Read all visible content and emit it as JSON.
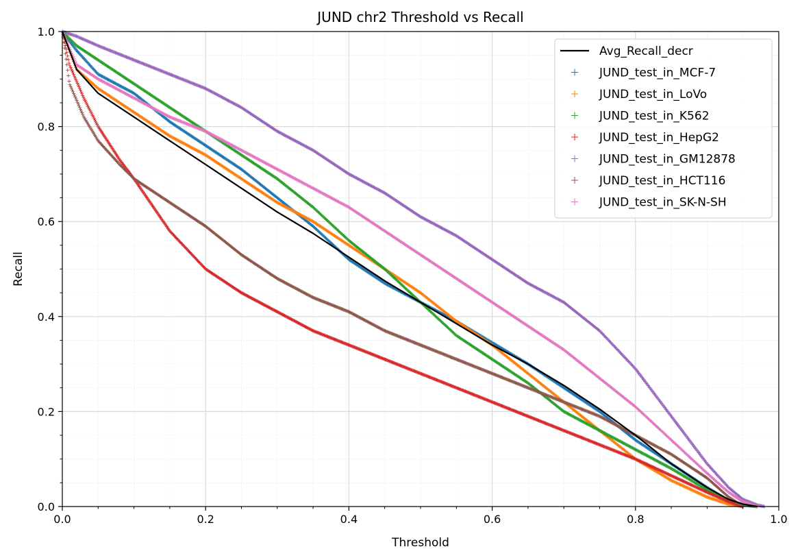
{
  "chart_data": {
    "type": "scatter",
    "title": "JUND chr2 Threshold vs Recall",
    "xlabel": "Threshold",
    "ylabel": "Recall",
    "xlim": [
      0,
      1
    ],
    "ylim": [
      0,
      1
    ],
    "grid": true,
    "legend_position": "top-right",
    "x_ticks": [
      "0.0",
      "0.2",
      "0.4",
      "0.6",
      "0.8",
      "1.0"
    ],
    "y_ticks": [
      "0.0",
      "0.2",
      "0.4",
      "0.6",
      "0.8",
      "1.0"
    ],
    "line_series": {
      "name": "Avg_Recall_decr",
      "color": "#000000",
      "x": [
        0,
        0.02,
        0.05,
        0.1,
        0.15,
        0.2,
        0.25,
        0.3,
        0.35,
        0.4,
        0.45,
        0.5,
        0.55,
        0.6,
        0.65,
        0.7,
        0.75,
        0.8,
        0.85,
        0.9,
        0.93,
        0.95,
        0.97
      ],
      "y": [
        1.0,
        0.92,
        0.87,
        0.82,
        0.77,
        0.72,
        0.67,
        0.62,
        0.575,
        0.525,
        0.475,
        0.43,
        0.385,
        0.34,
        0.3,
        0.255,
        0.205,
        0.15,
        0.09,
        0.04,
        0.015,
        0.005,
        0.0
      ]
    },
    "series": [
      {
        "name": "JUND_test_in_MCF-7",
        "color": "#1f77b4",
        "x": [
          0,
          0.02,
          0.05,
          0.1,
          0.15,
          0.2,
          0.25,
          0.3,
          0.35,
          0.4,
          0.45,
          0.5,
          0.55,
          0.6,
          0.65,
          0.7,
          0.75,
          0.8,
          0.85,
          0.9,
          0.93,
          0.95,
          0.97
        ],
        "y": [
          1.0,
          0.96,
          0.91,
          0.87,
          0.81,
          0.76,
          0.71,
          0.65,
          0.59,
          0.52,
          0.47,
          0.43,
          0.39,
          0.345,
          0.3,
          0.25,
          0.2,
          0.14,
          0.09,
          0.04,
          0.012,
          0.004,
          0.0
        ]
      },
      {
        "name": "JUND_test_in_LoVo",
        "color": "#ff7f0e",
        "x": [
          0,
          0.02,
          0.05,
          0.1,
          0.15,
          0.2,
          0.25,
          0.3,
          0.35,
          0.4,
          0.45,
          0.5,
          0.55,
          0.6,
          0.65,
          0.7,
          0.75,
          0.8,
          0.85,
          0.9,
          0.93,
          0.95
        ],
        "y": [
          1.0,
          0.92,
          0.88,
          0.83,
          0.78,
          0.74,
          0.69,
          0.64,
          0.6,
          0.55,
          0.5,
          0.45,
          0.39,
          0.34,
          0.28,
          0.22,
          0.16,
          0.1,
          0.055,
          0.02,
          0.005,
          0.0
        ]
      },
      {
        "name": "JUND_test_in_K562",
        "color": "#2ca02c",
        "x": [
          0,
          0.02,
          0.05,
          0.1,
          0.15,
          0.2,
          0.25,
          0.3,
          0.35,
          0.4,
          0.45,
          0.5,
          0.55,
          0.6,
          0.65,
          0.7,
          0.75,
          0.8,
          0.85,
          0.9,
          0.93,
          0.95,
          0.97
        ],
        "y": [
          1.0,
          0.97,
          0.94,
          0.89,
          0.84,
          0.79,
          0.74,
          0.69,
          0.63,
          0.56,
          0.5,
          0.43,
          0.36,
          0.31,
          0.26,
          0.2,
          0.16,
          0.12,
          0.08,
          0.035,
          0.012,
          0.004,
          0.0
        ]
      },
      {
        "name": "JUND_test_in_HepG2",
        "color": "#d62728",
        "x": [
          0,
          0.01,
          0.03,
          0.05,
          0.08,
          0.1,
          0.15,
          0.2,
          0.25,
          0.3,
          0.35,
          0.4,
          0.45,
          0.5,
          0.55,
          0.6,
          0.65,
          0.7,
          0.75,
          0.8,
          0.85,
          0.9,
          0.93,
          0.95
        ],
        "y": [
          1.0,
          0.93,
          0.86,
          0.8,
          0.73,
          0.69,
          0.58,
          0.5,
          0.45,
          0.41,
          0.37,
          0.34,
          0.31,
          0.28,
          0.25,
          0.22,
          0.19,
          0.16,
          0.13,
          0.1,
          0.065,
          0.03,
          0.01,
          0.0
        ]
      },
      {
        "name": "JUND_test_in_GM12878",
        "color": "#9467bd",
        "x": [
          0,
          0.02,
          0.05,
          0.1,
          0.15,
          0.2,
          0.25,
          0.3,
          0.35,
          0.4,
          0.45,
          0.5,
          0.55,
          0.6,
          0.65,
          0.7,
          0.75,
          0.8,
          0.85,
          0.9,
          0.93,
          0.95,
          0.97,
          0.98
        ],
        "y": [
          1.0,
          0.99,
          0.97,
          0.94,
          0.91,
          0.88,
          0.84,
          0.79,
          0.75,
          0.7,
          0.66,
          0.61,
          0.57,
          0.52,
          0.47,
          0.43,
          0.37,
          0.29,
          0.19,
          0.09,
          0.04,
          0.015,
          0.003,
          0.0
        ]
      },
      {
        "name": "JUND_test_in_HCT116",
        "color": "#8c564b",
        "x": [
          0,
          0.01,
          0.03,
          0.05,
          0.08,
          0.1,
          0.15,
          0.2,
          0.25,
          0.3,
          0.35,
          0.4,
          0.45,
          0.5,
          0.55,
          0.6,
          0.65,
          0.7,
          0.75,
          0.8,
          0.85,
          0.9,
          0.93,
          0.95
        ],
        "y": [
          1.0,
          0.89,
          0.82,
          0.77,
          0.72,
          0.69,
          0.64,
          0.59,
          0.53,
          0.48,
          0.44,
          0.41,
          0.37,
          0.34,
          0.31,
          0.28,
          0.25,
          0.22,
          0.19,
          0.15,
          0.11,
          0.06,
          0.02,
          0.0
        ]
      },
      {
        "name": "JUND_test_in_SK-N-SH",
        "color": "#e377c2",
        "x": [
          0,
          0.02,
          0.05,
          0.1,
          0.15,
          0.2,
          0.25,
          0.3,
          0.35,
          0.4,
          0.45,
          0.5,
          0.55,
          0.6,
          0.65,
          0.7,
          0.75,
          0.8,
          0.85,
          0.9,
          0.93,
          0.95,
          0.97
        ],
        "y": [
          1.0,
          0.93,
          0.9,
          0.86,
          0.82,
          0.79,
          0.75,
          0.71,
          0.67,
          0.63,
          0.58,
          0.53,
          0.48,
          0.43,
          0.38,
          0.33,
          0.27,
          0.21,
          0.14,
          0.07,
          0.03,
          0.01,
          0.0
        ]
      }
    ]
  }
}
